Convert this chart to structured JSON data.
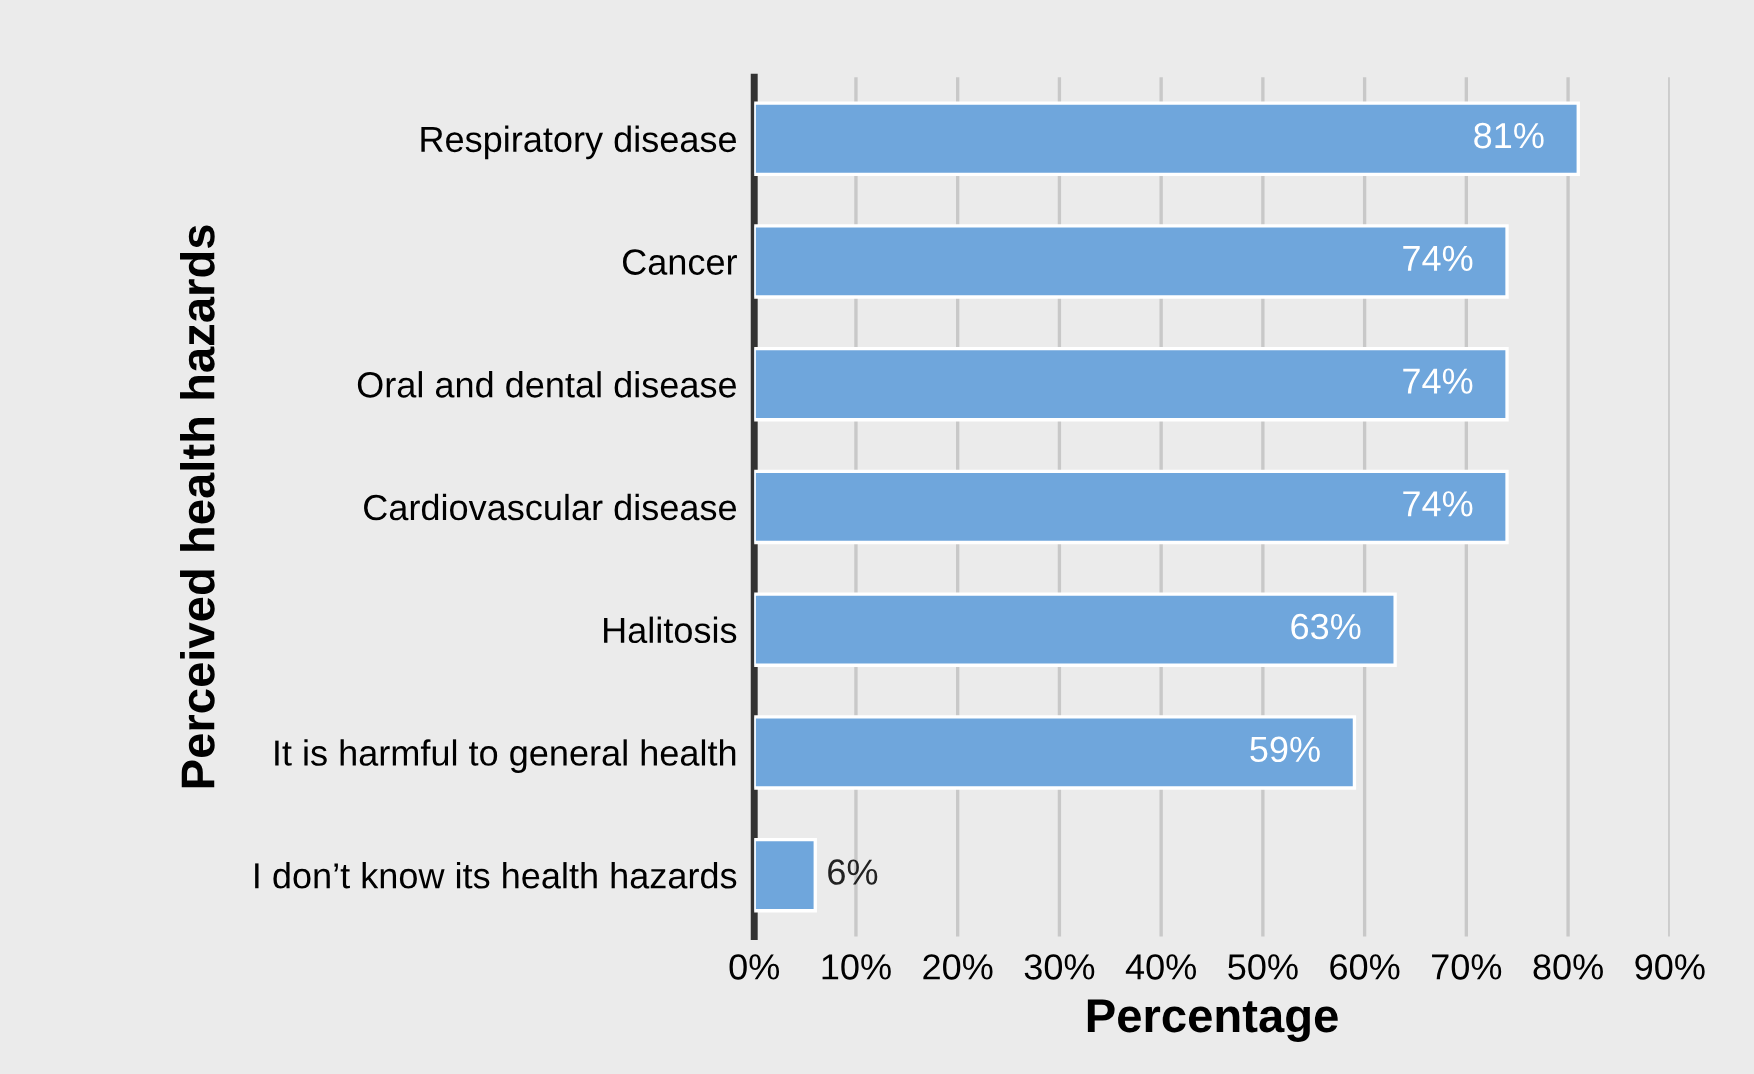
{
  "chart_data": {
    "type": "bar",
    "orientation": "horizontal",
    "ylabel": "Perceived health hazards",
    "xlabel": "Percentage",
    "categories": [
      "Respiratory disease",
      "Cancer",
      "Oral and dental disease",
      "Cardiovascular disease",
      "Halitosis",
      "It is harmful to general health",
      "I don’t know its health hazards"
    ],
    "values": [
      81,
      74,
      74,
      74,
      63,
      59,
      6
    ],
    "value_labels": [
      "81%",
      "74%",
      "74%",
      "74%",
      "63%",
      "59%",
      "6%"
    ],
    "color": "#6fa6dc",
    "xlim": [
      0,
      90
    ],
    "xticks": [
      {
        "value": 0,
        "label": "0%"
      },
      {
        "value": 10,
        "label": "10%"
      },
      {
        "value": 20,
        "label": "20%"
      },
      {
        "value": 30,
        "label": "30%"
      },
      {
        "value": 40,
        "label": "40%"
      },
      {
        "value": 50,
        "label": "50%"
      },
      {
        "value": 60,
        "label": "60%"
      },
      {
        "value": 70,
        "label": "70%"
      },
      {
        "value": 80,
        "label": "80%"
      },
      {
        "value": 90,
        "label": "90%"
      }
    ],
    "grid": "x",
    "legend": false
  }
}
